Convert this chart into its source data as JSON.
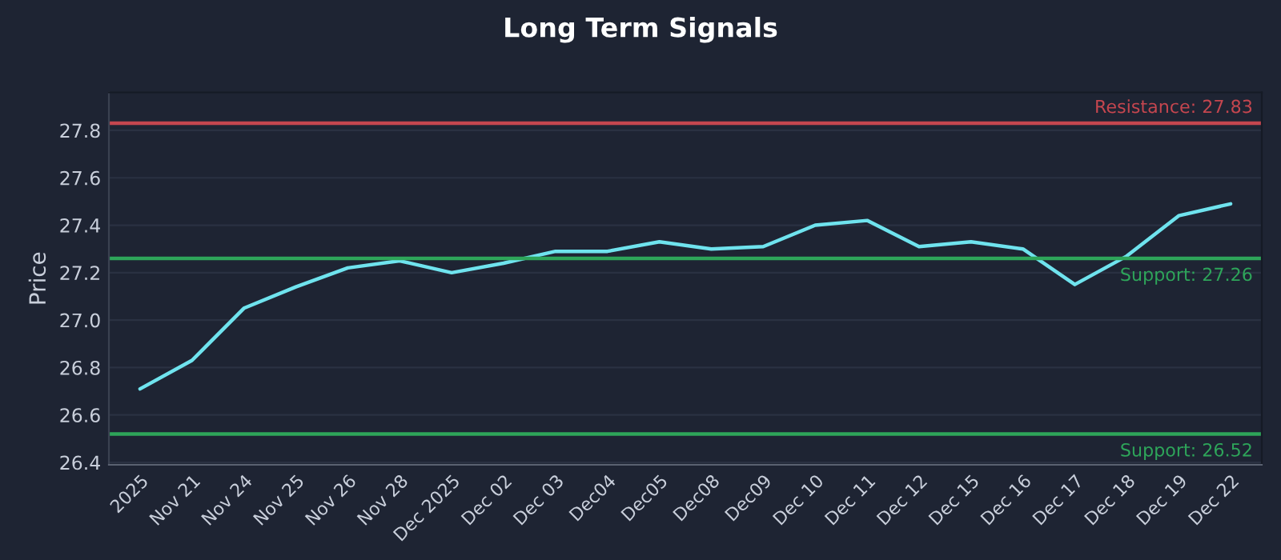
{
  "chart_data": {
    "type": "line",
    "title": "Long Term Signals",
    "ylabel": "Price",
    "categories": [
      "2025",
      "Nov 21",
      "Nov 24",
      "Nov 25",
      "Nov 26",
      "Nov 28",
      "Dec 2025",
      "Dec 02",
      "Dec 03",
      "Dec04",
      "Dec05",
      "Dec08",
      "Dec09",
      "Dec 10",
      "Dec 11",
      "Dec 12",
      "Dec 15",
      "Dec 16",
      "Dec 17",
      "Dec 18",
      "Dec 19",
      "Dec 22"
    ],
    "series": [
      {
        "color": "#6fe3ee",
        "values": [
          26.71,
          26.83,
          27.05,
          27.14,
          27.22,
          27.25,
          27.2,
          27.24,
          27.29,
          27.29,
          27.33,
          27.3,
          27.31,
          27.4,
          27.42,
          27.31,
          27.33,
          27.3,
          27.15,
          27.27,
          27.44,
          27.49
        ]
      }
    ],
    "ylim": [
      26.39,
      27.96
    ],
    "yticks": [
      26.4,
      26.6,
      26.8,
      {
        "value": 27.0,
        "label": "27.0"
      },
      27.2,
      27.4,
      27.6,
      27.8
    ],
    "ref_lines": [
      {
        "axis": "y",
        "value": 27.83,
        "label": "Resistance: 27.83",
        "color": "#c5464f"
      },
      {
        "axis": "y",
        "value": 27.26,
        "label": "Support: 27.26",
        "color": "#2ea55a"
      },
      {
        "axis": "y",
        "value": 26.52,
        "label": "Support: 26.52",
        "color": "#2ea55a"
      }
    ],
    "grid": "y",
    "legend": false,
    "marker": "none",
    "line_style": "solid"
  }
}
